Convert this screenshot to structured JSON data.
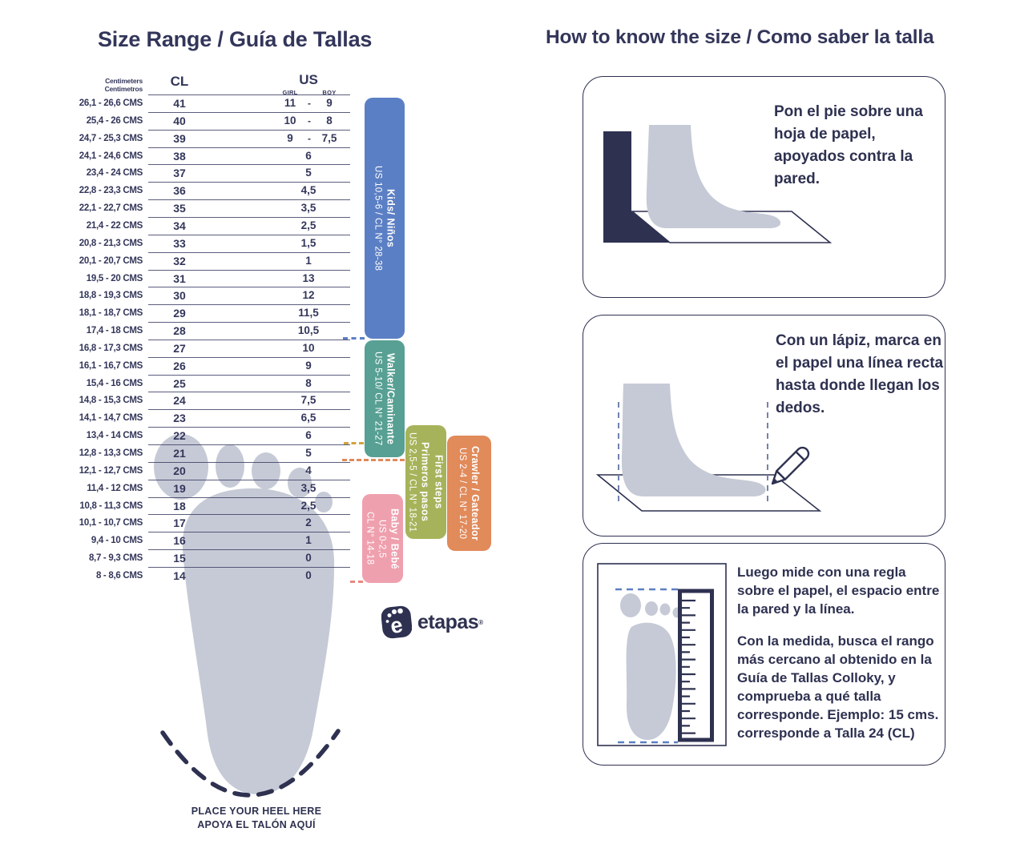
{
  "colors": {
    "navy": "#2e3150",
    "text_navy": "#33365a",
    "kids_blue": "#5b7fc4",
    "walker_teal": "#57a093",
    "first_steps_olive": "#a7b35a",
    "crawler_orange": "#e18a5a",
    "baby_pink": "#efa0ae",
    "foot_gray": "#c6cad6",
    "dash_mustard": "#d2a43f",
    "dash_salmon": "#e8897f"
  },
  "left": {
    "title": "Size Range / Guía de Tallas",
    "table": {
      "header": {
        "cm_line1": "Centimeters",
        "cm_line2": "Centimetros",
        "cl": "CL",
        "us": "US",
        "girl": "GIRL",
        "boy": "BOY",
        "separator": "-"
      },
      "rows": [
        {
          "cms": "26,1 - 26,6 CMS",
          "cl": "41",
          "girl": "11",
          "boy": "9"
        },
        {
          "cms": "25,4 - 26 CMS",
          "cl": "40",
          "girl": "10",
          "boy": "8"
        },
        {
          "cms": "24,7 - 25,3 CMS",
          "cl": "39",
          "girl": "9",
          "boy": "7,5"
        },
        {
          "cms": "24,1 - 24,6 CMS",
          "cl": "38",
          "us": "6"
        },
        {
          "cms": "23,4 - 24 CMS",
          "cl": "37",
          "us": "5"
        },
        {
          "cms": "22,8 - 23,3 CMS",
          "cl": "36",
          "us": "4,5"
        },
        {
          "cms": "22,1 - 22,7 CMS",
          "cl": "35",
          "us": "3,5"
        },
        {
          "cms": "21,4 - 22 CMS",
          "cl": "34",
          "us": "2,5"
        },
        {
          "cms": "20,8 - 21,3 CMS",
          "cl": "33",
          "us": "1,5"
        },
        {
          "cms": "20,1 - 20,7 CMS",
          "cl": "32",
          "us": "1"
        },
        {
          "cms": "19,5 - 20 CMS",
          "cl": "31",
          "us": "13"
        },
        {
          "cms": "18,8 - 19,3 CMS",
          "cl": "30",
          "us": "12"
        },
        {
          "cms": "18,1 - 18,7 CMS",
          "cl": "29",
          "us": "11,5"
        },
        {
          "cms": "17,4 - 18 CMS",
          "cl": "28",
          "us": "10,5"
        },
        {
          "cms": "16,8 - 17,3 CMS",
          "cl": "27",
          "us": "10"
        },
        {
          "cms": "16,1 - 16,7 CMS",
          "cl": "26",
          "us": "9"
        },
        {
          "cms": "15,4 - 16 CMS",
          "cl": "25",
          "us": "8"
        },
        {
          "cms": "14,8 - 15,3 CMS",
          "cl": "24",
          "us": "7,5"
        },
        {
          "cms": "14,1 - 14,7 CMS",
          "cl": "23",
          "us": "6,5"
        },
        {
          "cms": "13,4 - 14 CMS",
          "cl": "22",
          "us": "6"
        },
        {
          "cms": "12,8 - 13,3 CMS",
          "cl": "21",
          "us": "5"
        },
        {
          "cms": "12,1 - 12,7 CMS",
          "cl": "20",
          "us": "4"
        },
        {
          "cms": "11,4 - 12 CMS",
          "cl": "19",
          "us": "3,5"
        },
        {
          "cms": "10,8 - 11,3 CMS",
          "cl": "18",
          "us": "2,5"
        },
        {
          "cms": "10,1 - 10,7 CMS",
          "cl": "17",
          "us": "2"
        },
        {
          "cms": "9,4 - 10 CMS",
          "cl": "16",
          "us": "1"
        },
        {
          "cms": "8,7 - 9,3 CMS",
          "cl": "15",
          "us": "0"
        },
        {
          "cms": "8 - 8,6 CMS",
          "cl": "14",
          "us": "0"
        }
      ]
    },
    "bands": [
      {
        "id": "kids",
        "name": "Kids/ Niños",
        "range": "US 10,5-6 / CL N° 28-38",
        "color": "#5b7fc4"
      },
      {
        "id": "walker",
        "name": "Walker/Caminante",
        "range": "US 5-10/ CL N° 21-27",
        "color": "#57a093"
      },
      {
        "id": "first_steps",
        "name": "First steps",
        "name2": "Primeros pasos",
        "range": "US 2,5-5 / CL N° 18-21",
        "color": "#a7b35a"
      },
      {
        "id": "crawler",
        "name": "Crawler / Gateador",
        "range": "US 2-4 / CL N° 17-20",
        "color": "#e18a5a"
      },
      {
        "id": "baby",
        "name": "Baby / Bebé",
        "range": "US 0-2,5",
        "range2": "CL N° 14-18",
        "color": "#efa0ae"
      }
    ],
    "heel_note_line1": "PLACE YOUR HEEL HERE",
    "heel_note_line2": "APOYA EL TALÓN AQUÍ",
    "logo": {
      "text": "etapas",
      "mark": "®"
    }
  },
  "right": {
    "title": "How to know the size / Como saber la talla",
    "steps": [
      {
        "text": "Pon el pie sobre una hoja de papel, apoyados contra la pared."
      },
      {
        "text": "Con un lápiz, marca en el papel una línea recta hasta donde llegan los dedos."
      },
      {
        "text_1": "Luego mide con una regla sobre el papel, el espacio entre la pared y la línea.",
        "text_2": "Con la medida, busca el rango más cercano al obtenido en la Guía de Tallas Colloky, y comprueba a qué talla corresponde. Ejemplo:  15 cms. corresponde a Talla 24 (CL)"
      }
    ]
  }
}
